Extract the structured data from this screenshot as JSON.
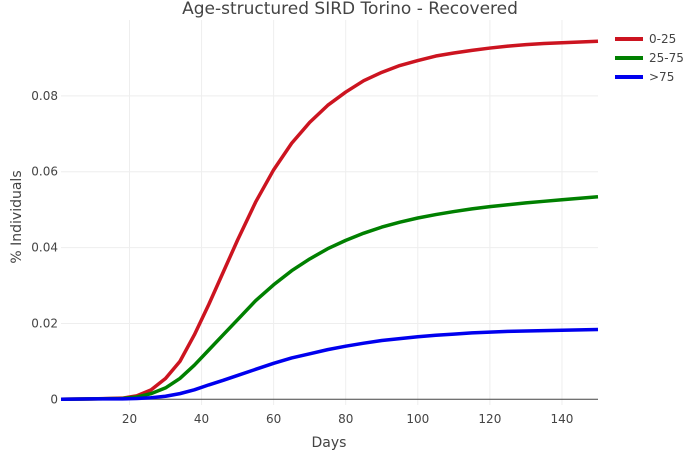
{
  "chart_data": {
    "type": "line",
    "title": "Age-structured SIRD Torino - Recovered",
    "xlabel": "Days",
    "ylabel": "% Individuals",
    "xlim": [
      1,
      150
    ],
    "ylim": [
      -0.0015,
      0.1
    ],
    "xticks": [
      20,
      40,
      60,
      80,
      100,
      120,
      140
    ],
    "yticks": [
      0,
      0.02,
      0.04,
      0.06,
      0.08
    ],
    "ytick_labels": [
      "0",
      "0.02",
      "0.04",
      "0.06",
      "0.08"
    ],
    "grid": true,
    "legend_position": "top-right",
    "series": [
      {
        "name": "0-25",
        "color": "#cc1420",
        "x": [
          1,
          10,
          18,
          22,
          26,
          30,
          34,
          38,
          42,
          46,
          50,
          55,
          60,
          65,
          70,
          75,
          80,
          85,
          90,
          95,
          100,
          105,
          110,
          115,
          120,
          125,
          130,
          135,
          140,
          145,
          150
        ],
        "y": [
          0,
          0.0001,
          0.0003,
          0.0009,
          0.0025,
          0.0055,
          0.01,
          0.017,
          0.025,
          0.0335,
          0.042,
          0.052,
          0.0605,
          0.0675,
          0.073,
          0.0775,
          0.081,
          0.084,
          0.0862,
          0.088,
          0.0893,
          0.0905,
          0.0913,
          0.092,
          0.0926,
          0.0931,
          0.0935,
          0.0938,
          0.094,
          0.0942,
          0.0944
        ]
      },
      {
        "name": "25-75",
        "color": "#008000",
        "x": [
          1,
          10,
          18,
          22,
          26,
          30,
          34,
          38,
          42,
          46,
          50,
          55,
          60,
          65,
          70,
          75,
          80,
          85,
          90,
          95,
          100,
          105,
          110,
          115,
          120,
          125,
          130,
          135,
          140,
          145,
          150
        ],
        "y": [
          0,
          0.0001,
          0.0002,
          0.0006,
          0.0015,
          0.003,
          0.0055,
          0.009,
          0.013,
          0.017,
          0.021,
          0.026,
          0.0302,
          0.0339,
          0.037,
          0.0397,
          0.0419,
          0.0438,
          0.0454,
          0.0467,
          0.0478,
          0.0487,
          0.0495,
          0.0502,
          0.0508,
          0.0513,
          0.0518,
          0.0522,
          0.0526,
          0.053,
          0.0534
        ]
      },
      {
        "name": ">75",
        "color": "#0000ee",
        "x": [
          1,
          10,
          18,
          22,
          26,
          30,
          34,
          38,
          42,
          46,
          50,
          55,
          60,
          65,
          70,
          75,
          80,
          85,
          90,
          95,
          100,
          105,
          110,
          115,
          120,
          125,
          130,
          135,
          140,
          145,
          150
        ],
        "y": [
          0,
          0.0001,
          0.0001,
          0.0002,
          0.0004,
          0.0008,
          0.0015,
          0.0025,
          0.0038,
          0.005,
          0.0063,
          0.0079,
          0.0095,
          0.0109,
          0.012,
          0.0131,
          0.014,
          0.0148,
          0.0155,
          0.016,
          0.0165,
          0.0169,
          0.0172,
          0.0175,
          0.0177,
          0.0179,
          0.018,
          0.0181,
          0.0182,
          0.0183,
          0.0184
        ]
      }
    ]
  }
}
